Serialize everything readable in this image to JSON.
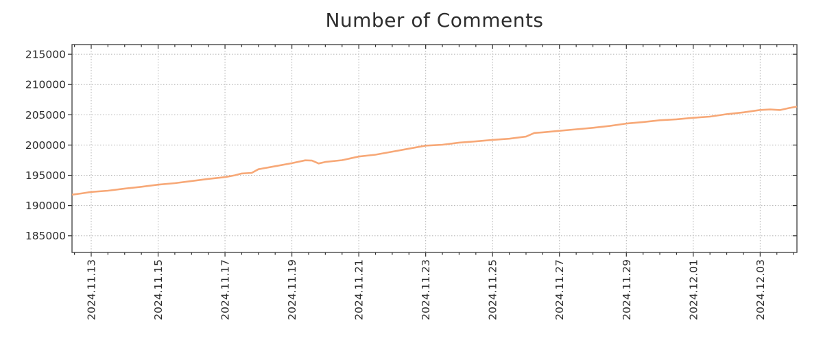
{
  "chart_data": {
    "type": "line",
    "title": "Number of Comments",
    "x_axis": {
      "offsets_relative_to": "2024.11.13",
      "tick_labels": [
        "2024.11.13",
        "2024.11.15",
        "2024.11.17",
        "2024.11.19",
        "2024.11.21",
        "2024.11.23",
        "2024.11.25",
        "2024.11.27",
        "2024.11.29",
        "2024.12.01",
        "2024.12.03"
      ],
      "tick_offsets_days": [
        0,
        2,
        4,
        6,
        8,
        10,
        12,
        14,
        16,
        18,
        20
      ],
      "minor_step_days": 0.5,
      "range_days": [
        -0.574,
        21.1
      ]
    },
    "y_axis": {
      "tick_labels": [
        "185000",
        "190000",
        "195000",
        "200000",
        "205000",
        "210000",
        "215000"
      ],
      "tick_values": [
        185000,
        190000,
        195000,
        200000,
        205000,
        210000,
        215000
      ],
      "range": [
        182250,
        216600
      ]
    },
    "grid": {
      "style": "dotted",
      "color": "#b0b0b0"
    },
    "legend": null,
    "series": [
      {
        "name": "Number of Comments",
        "color": "#f7a877",
        "points": [
          [
            -0.574,
            191800
          ],
          [
            -0.3,
            192000
          ],
          [
            0,
            192250
          ],
          [
            0.5,
            192450
          ],
          [
            1,
            192800
          ],
          [
            1.5,
            193100
          ],
          [
            2,
            193450
          ],
          [
            2.5,
            193700
          ],
          [
            3,
            194050
          ],
          [
            3.5,
            194400
          ],
          [
            4,
            194700
          ],
          [
            4.3,
            195000
          ],
          [
            4.5,
            195300
          ],
          [
            4.8,
            195400
          ],
          [
            5,
            196000
          ],
          [
            5.5,
            196500
          ],
          [
            6,
            197000
          ],
          [
            6.4,
            197480
          ],
          [
            6.6,
            197430
          ],
          [
            6.8,
            196950
          ],
          [
            7,
            197200
          ],
          [
            7.5,
            197500
          ],
          [
            8,
            198100
          ],
          [
            8.5,
            198400
          ],
          [
            9,
            198900
          ],
          [
            9.5,
            199400
          ],
          [
            10,
            199900
          ],
          [
            10.3,
            199980
          ],
          [
            10.5,
            200050
          ],
          [
            11,
            200400
          ],
          [
            11.5,
            200600
          ],
          [
            12,
            200850
          ],
          [
            12.5,
            201050
          ],
          [
            13,
            201400
          ],
          [
            13.25,
            202000
          ],
          [
            13.5,
            202100
          ],
          [
            14,
            202350
          ],
          [
            14.5,
            202600
          ],
          [
            15,
            202850
          ],
          [
            15.5,
            203150
          ],
          [
            16,
            203550
          ],
          [
            16.5,
            203800
          ],
          [
            17,
            204100
          ],
          [
            17.5,
            204250
          ],
          [
            18,
            204500
          ],
          [
            18.5,
            204700
          ],
          [
            19,
            205100
          ],
          [
            19.5,
            205400
          ],
          [
            20,
            205800
          ],
          [
            20.3,
            205870
          ],
          [
            20.6,
            205780
          ],
          [
            20.85,
            206100
          ],
          [
            21.1,
            206350
          ]
        ]
      }
    ]
  }
}
